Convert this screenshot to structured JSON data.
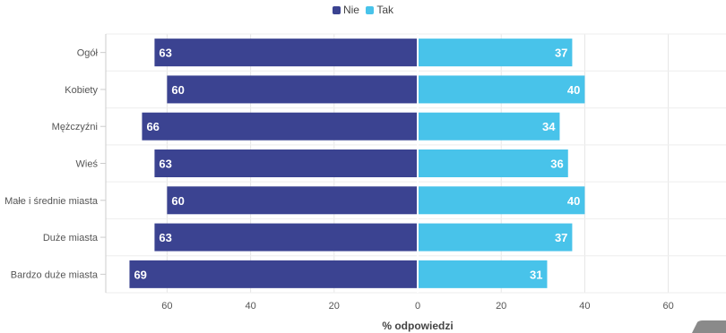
{
  "chart_data": {
    "type": "bar",
    "orientation": "horizontal-diverging",
    "categories": [
      "Ogół",
      "Kobiety",
      "Mężczyźni",
      "Wieś",
      "Małe i średnie miasta",
      "Duże miasta",
      "Bardzo duże miasta"
    ],
    "series": [
      {
        "name": "Nie",
        "color": "#3b4391",
        "values": [
          63,
          60,
          66,
          63,
          60,
          63,
          69
        ]
      },
      {
        "name": "Tak",
        "color": "#48c3ea",
        "values": [
          37,
          40,
          34,
          36,
          40,
          37,
          31
        ]
      }
    ],
    "xlabel": "% odpowiedzi",
    "xlim": [
      -75,
      75
    ],
    "xticks": [
      -60,
      -40,
      -20,
      0,
      20,
      40,
      60
    ],
    "xtick_labels": [
      "60",
      "40",
      "20",
      "0",
      "20",
      "40",
      "60"
    ],
    "grid": true,
    "legend_position": "top-center"
  }
}
